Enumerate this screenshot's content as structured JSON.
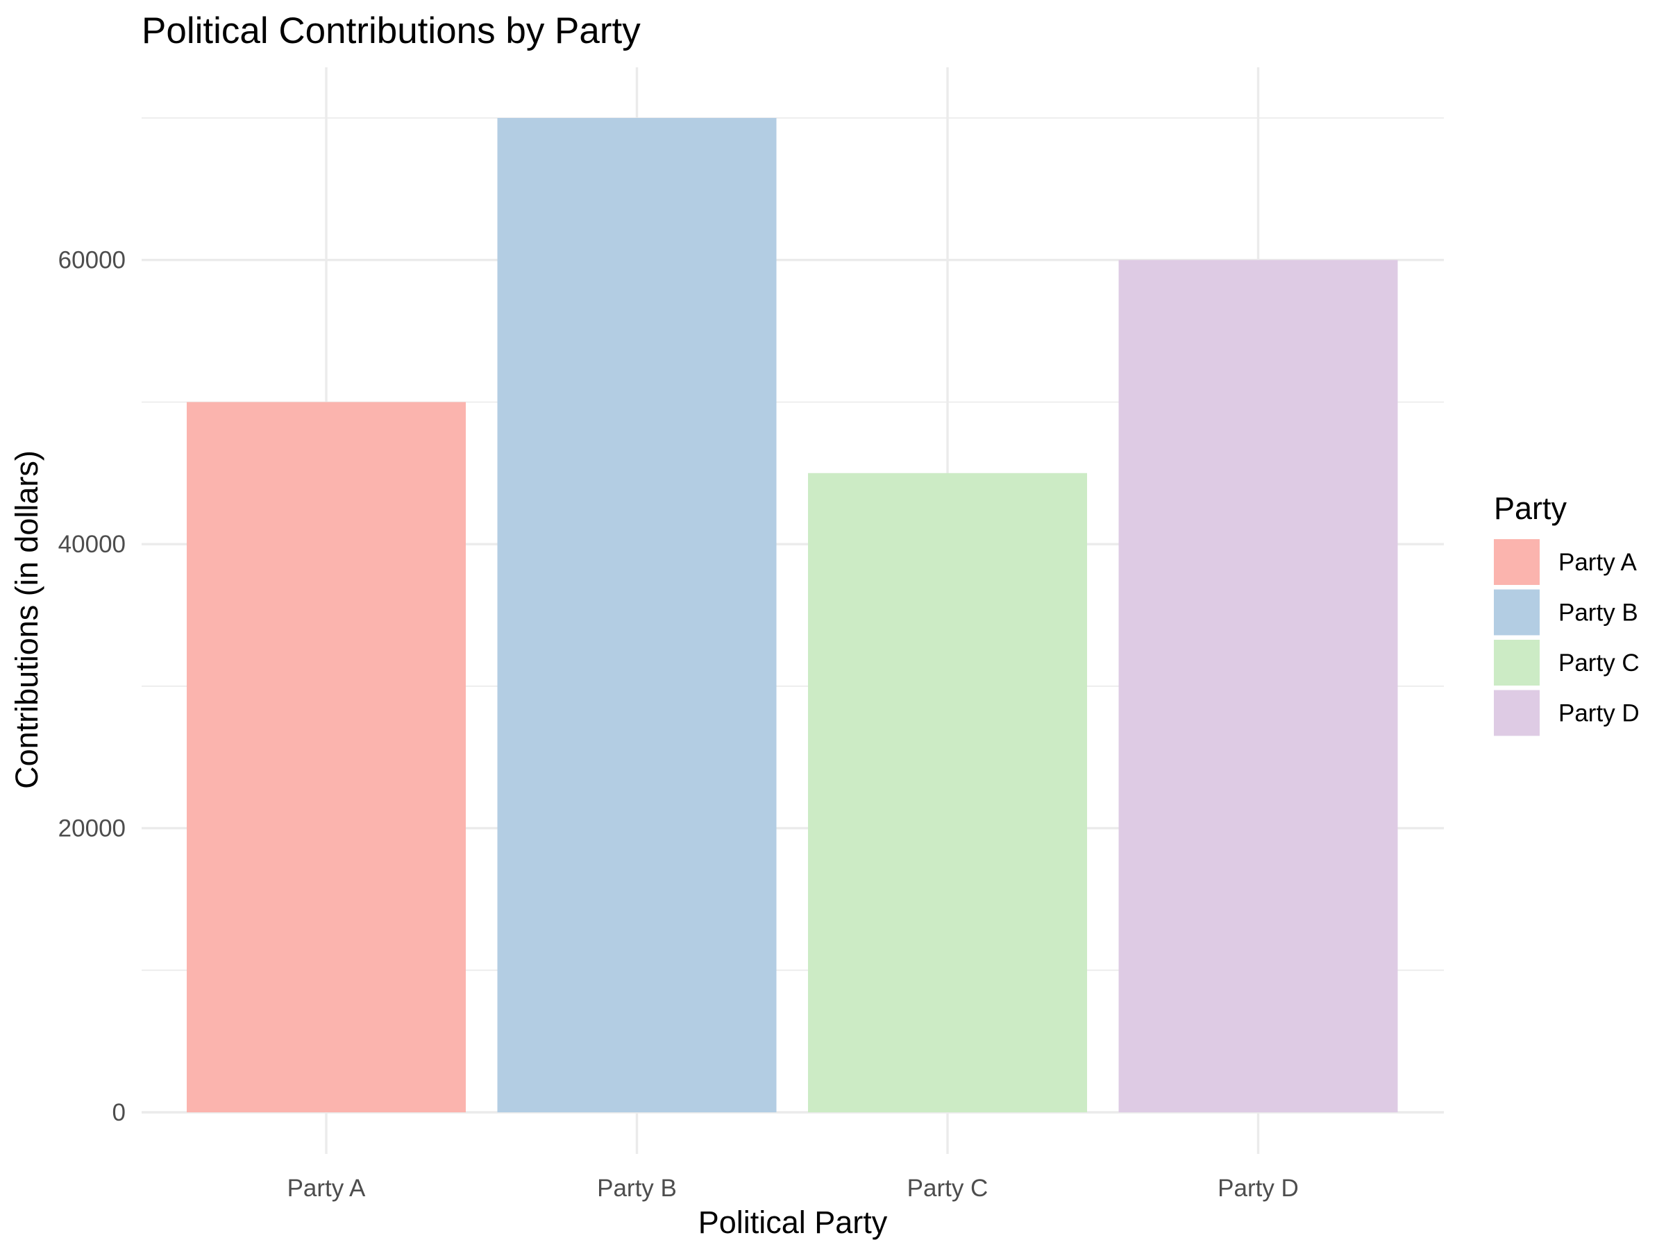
{
  "chart_data": {
    "type": "bar",
    "title": "Political Contributions by Party",
    "xlabel": "Political Party",
    "ylabel": "Contributions (in dollars)",
    "categories": [
      "Party A",
      "Party B",
      "Party C",
      "Party D"
    ],
    "values": [
      50000,
      70000,
      45000,
      60000
    ],
    "colors": [
      "#FBB4AE",
      "#B3CDE3",
      "#CCEBC5",
      "#DECBE4"
    ],
    "ylim": [
      0,
      70000
    ],
    "yticks": [
      0,
      20000,
      40000,
      60000
    ],
    "ytick_labels": [
      "0",
      "20000",
      "40000",
      "60000"
    ],
    "grid": true,
    "legend": {
      "title": "Party",
      "position": "right",
      "entries": [
        "Party A",
        "Party B",
        "Party C",
        "Party D"
      ]
    }
  }
}
